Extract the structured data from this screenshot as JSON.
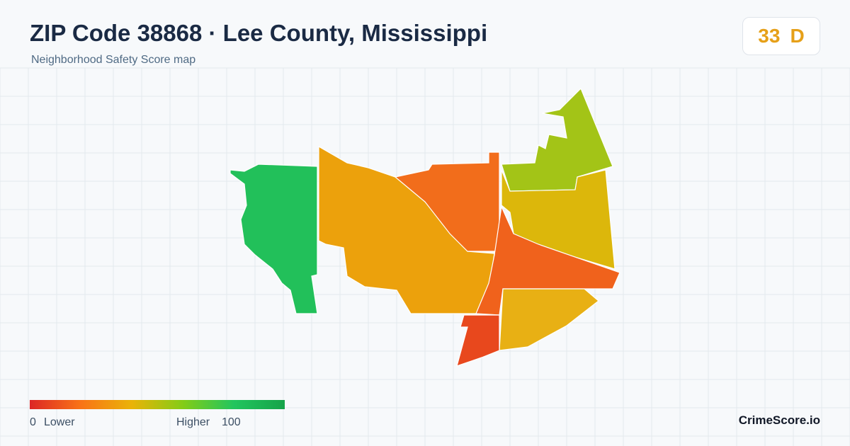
{
  "header": {
    "title": "ZIP Code 38868 · Lee County, Mississippi",
    "subtitle": "Neighborhood Safety Score map"
  },
  "score": {
    "value": "33",
    "grade": "D"
  },
  "legend": {
    "min": "0",
    "min_label": "Lower",
    "max_label": "Higher",
    "max": "100"
  },
  "brand": "CrimeScore.io"
}
